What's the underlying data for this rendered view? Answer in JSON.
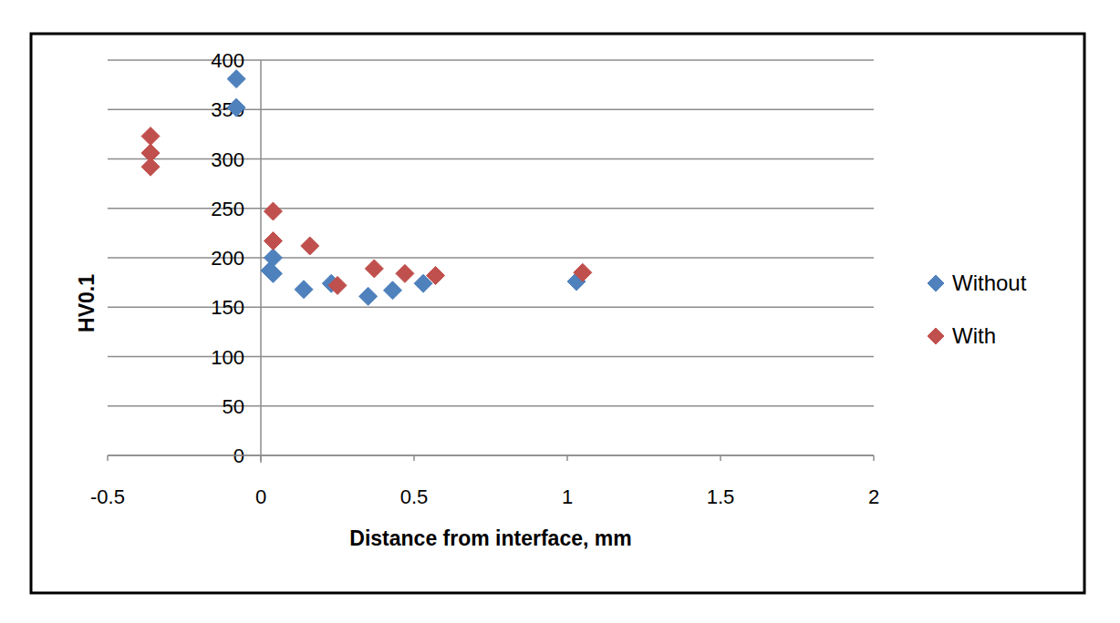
{
  "chart_data": {
    "type": "scatter",
    "x_label": "Distance from interface, mm",
    "y_label": "HV0.1",
    "series": [
      {
        "name": "Without",
        "color": "#4f81bd",
        "marker": "diamond",
        "x": [
          -0.08,
          -0.08,
          0.04,
          0.03,
          0.04,
          0.14,
          0.23,
          0.35,
          0.43,
          0.53,
          1.03
        ],
        "values": [
          381,
          352,
          200,
          187,
          184,
          168,
          174,
          161,
          167,
          174,
          176
        ]
      },
      {
        "name": "With",
        "color": "#c0504d",
        "marker": "diamond",
        "x": [
          -0.36,
          -0.36,
          -0.36,
          0.04,
          0.04,
          0.16,
          0.25,
          0.37,
          0.47,
          0.57,
          1.05
        ],
        "values": [
          323,
          306,
          292,
          247,
          217,
          212,
          172,
          189,
          184,
          182,
          185
        ]
      }
    ],
    "xlim": [
      -0.5,
      2
    ],
    "xticks": [
      -0.5,
      0,
      0.5,
      1,
      1.5,
      2
    ],
    "ylim": [
      0,
      400
    ],
    "yticks": [
      0,
      50,
      100,
      150,
      200,
      250,
      300,
      350,
      400
    ],
    "grid": true,
    "legend": "right"
  }
}
